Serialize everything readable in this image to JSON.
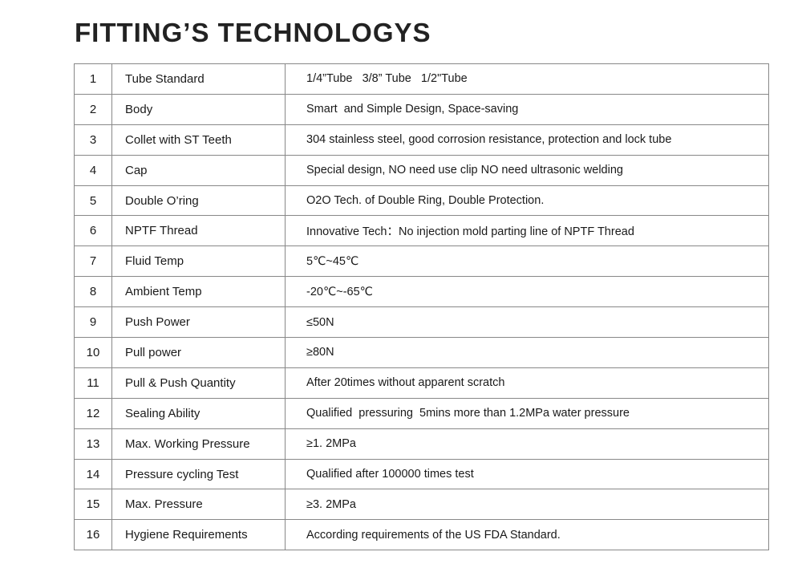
{
  "header": {
    "title": "FITTING’S TECHNOLOGYS"
  },
  "table": {
    "rows": [
      [
        "1",
        "Tube Standard",
        "1/4”Tube   3/8” Tube   1/2\"Tube"
      ],
      [
        "2",
        "Body",
        "Smart  and Simple Design, Space-saving"
      ],
      [
        "3",
        "Collet with ST Teeth",
        "304 stainless steel, good corrosion resistance, protection and lock tube"
      ],
      [
        "4",
        "Cap",
        "Special design, NO need use clip NO need ultrasonic welding"
      ],
      [
        "5",
        "Double O’ring",
        "O2O Tech. of Double Ring, Double Protection."
      ],
      [
        "6",
        "NPTF Thread",
        "Innovative Tech：No injection mold parting line of NPTF Thread"
      ],
      [
        "7",
        "Fluid Temp",
        "5℃~45℃"
      ],
      [
        "8",
        "Ambient Temp",
        "-20℃~-65℃"
      ],
      [
        "9",
        "Push Power",
        "≤50N"
      ],
      [
        "10",
        "Pull power",
        "≥80N"
      ],
      [
        "11",
        "Pull & Push Quantity",
        "After 20times without apparent scratch"
      ],
      [
        "12",
        "Sealing Ability",
        "Qualified  pressuring  5mins more than 1.2MPa water pressure"
      ],
      [
        "13",
        "Max. Working Pressure",
        "≥1. 2MPa"
      ],
      [
        "14",
        "Pressure cycling Test",
        "Qualified after 100000 times test"
      ],
      [
        "15",
        "Max. Pressure",
        "≥3. 2MPa"
      ],
      [
        "16",
        "Hygiene Requirements",
        "According requirements of the US FDA Standard."
      ]
    ]
  }
}
